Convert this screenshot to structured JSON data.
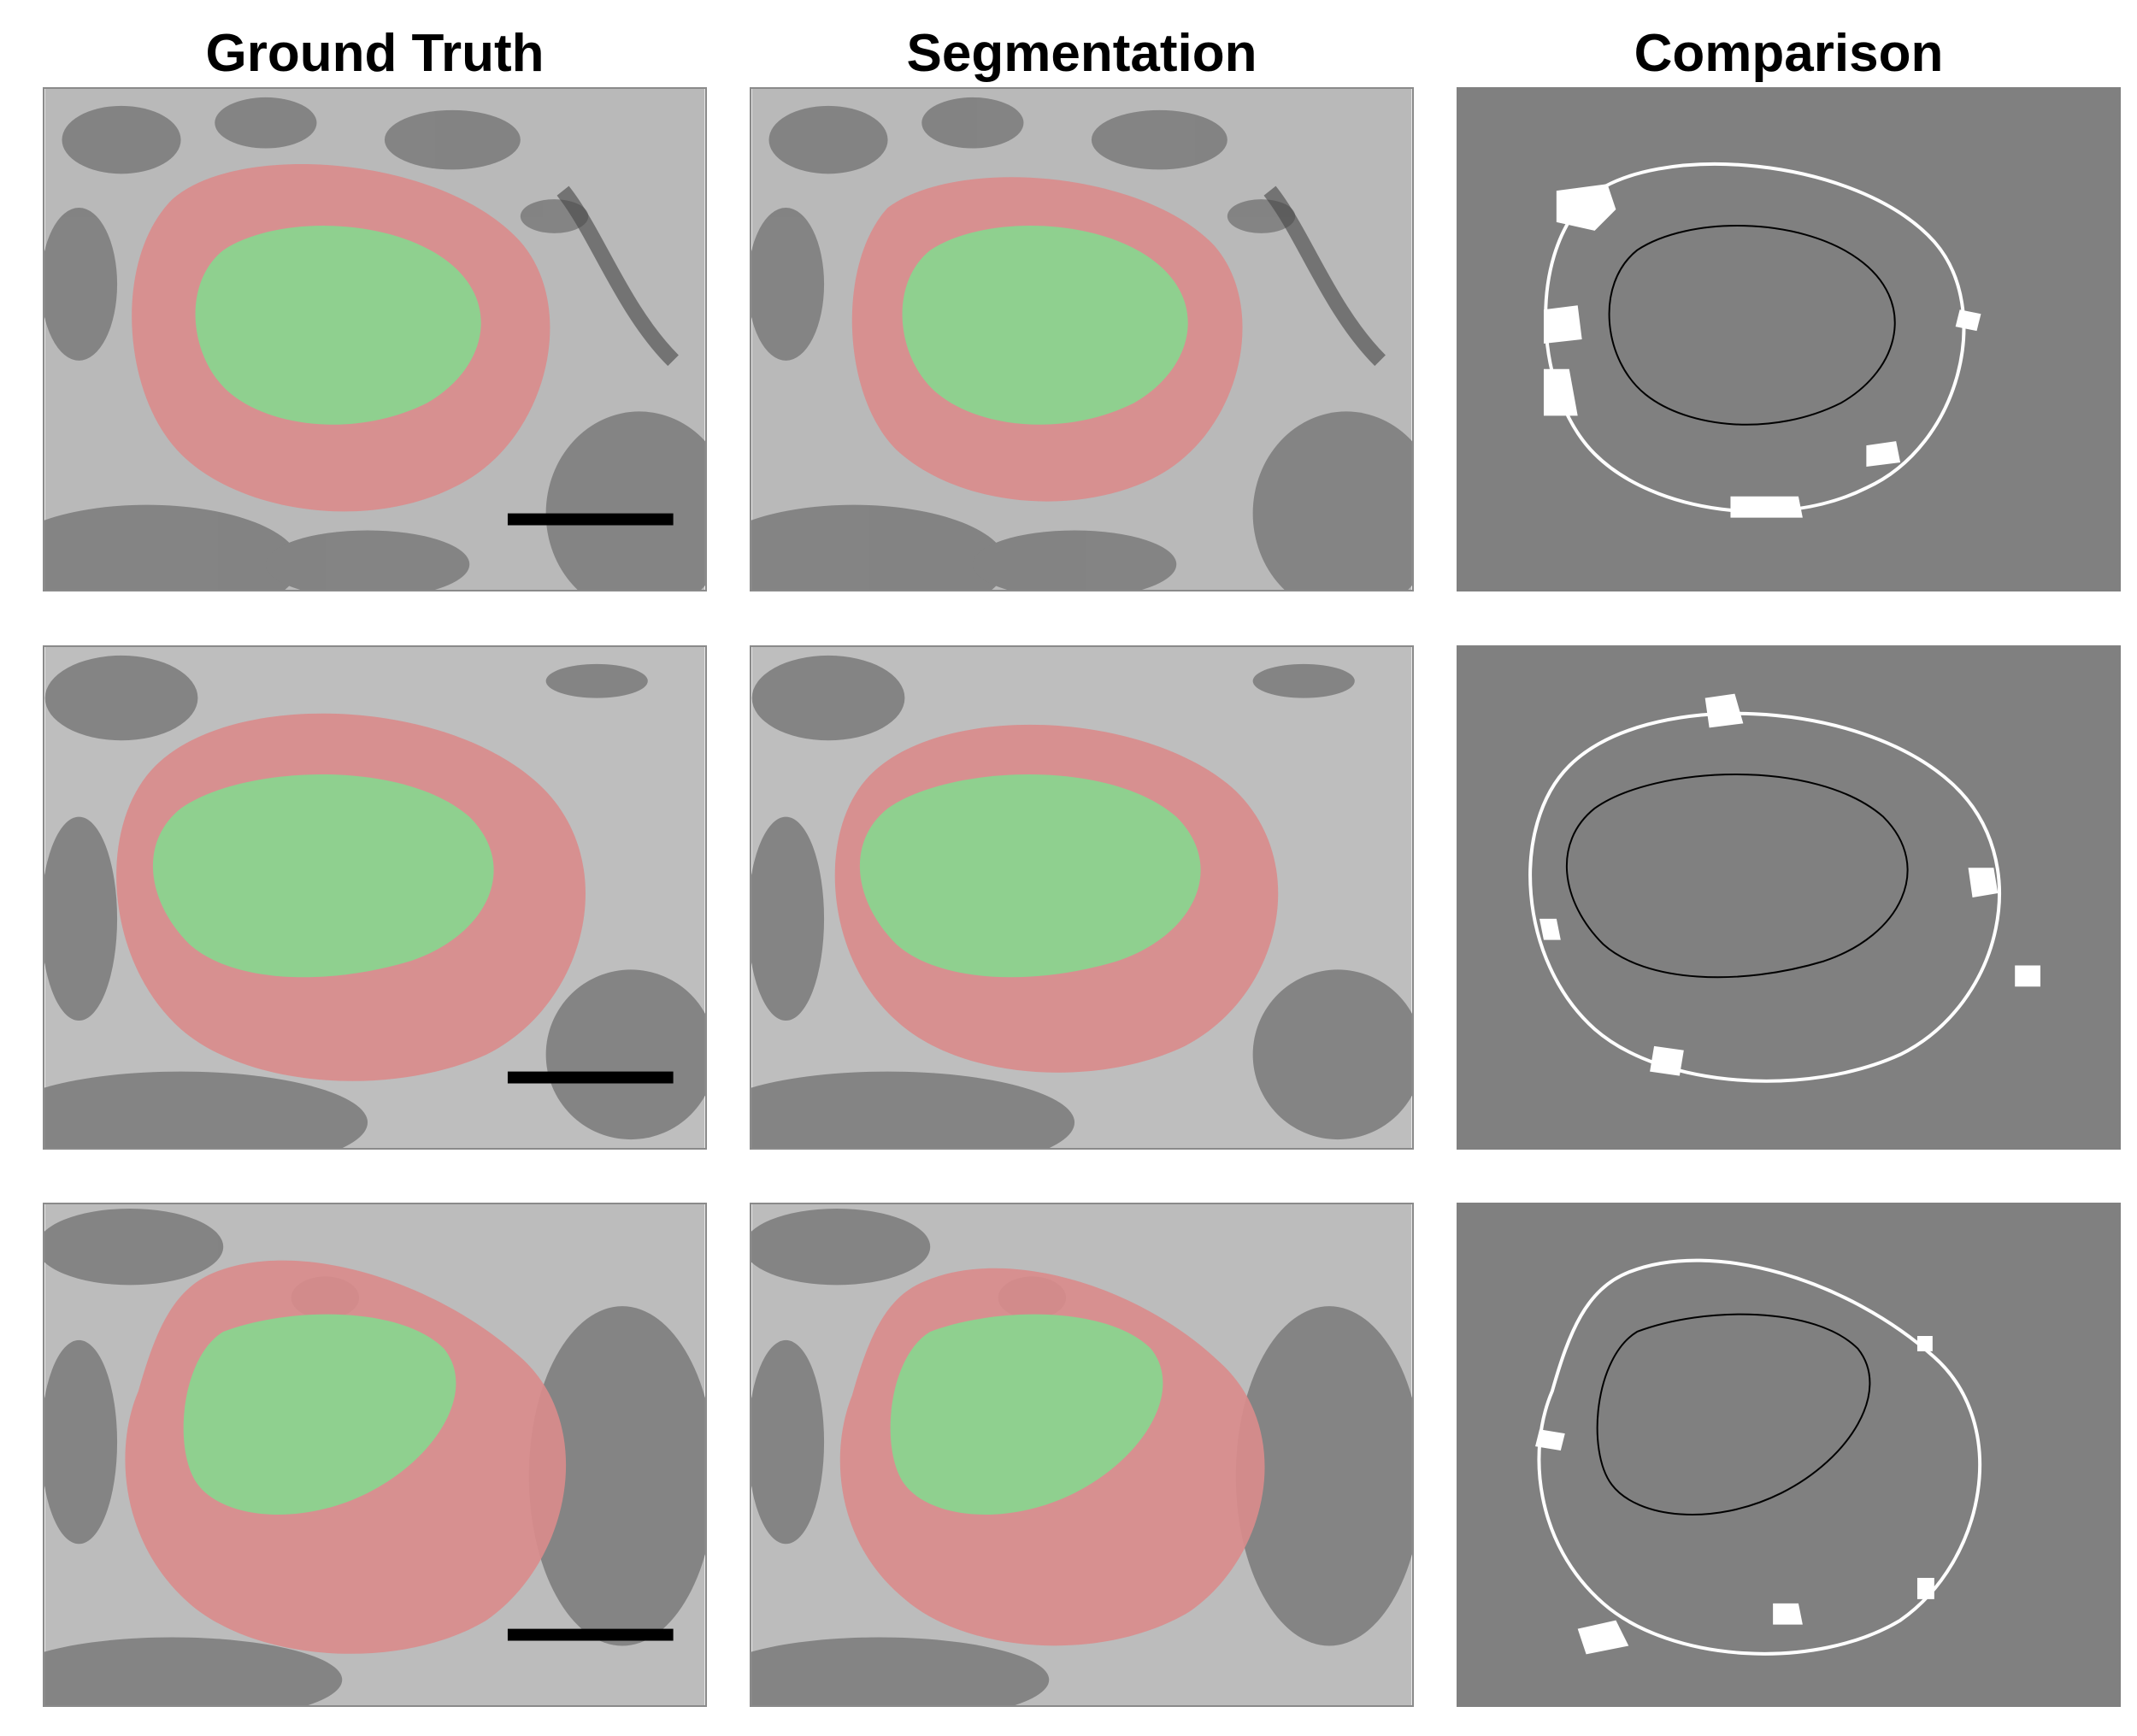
{
  "figure": {
    "columns": [
      {
        "id": "ground-truth",
        "title": "Ground Truth"
      },
      {
        "id": "segmentation",
        "title": "Segmentation"
      },
      {
        "id": "comparison",
        "title": "Comparison"
      }
    ],
    "rows": 3,
    "colors": {
      "background_em": "#b9b9b9",
      "cytoplasm_overlay": "#d98c8c",
      "nucleus_overlay": "#8fd08f",
      "comparison_background": "#808080",
      "comparison_false_negative": "#ffffff",
      "comparison_false_positive": "#000000",
      "scale_bar": "#000000"
    }
  }
}
